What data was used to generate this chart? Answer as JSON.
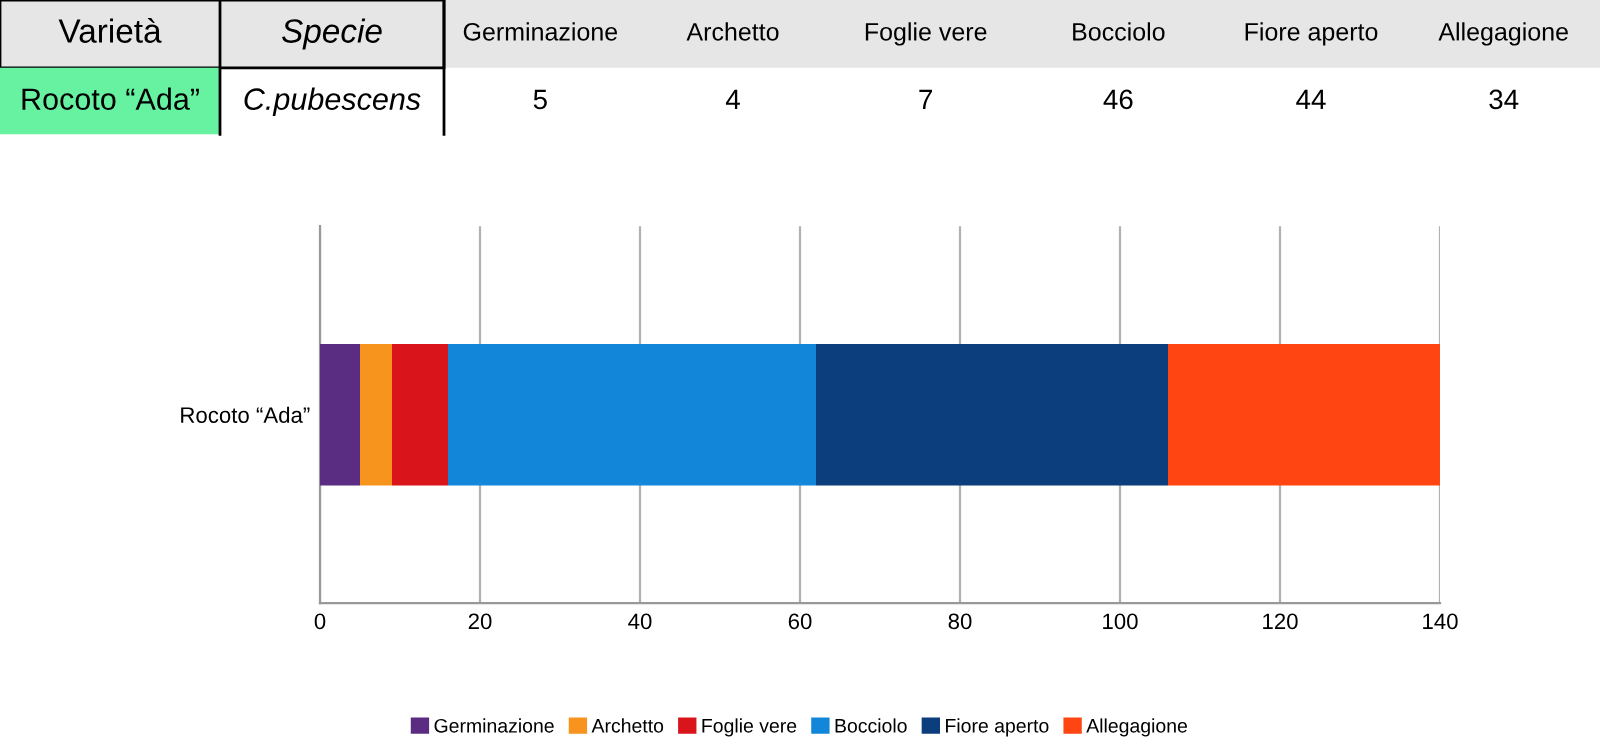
{
  "chart_data": {
    "type": "bar",
    "orientation": "horizontal",
    "stacked": true,
    "categories": [
      "Rocoto “Ada”"
    ],
    "series": [
      {
        "name": "Germinazione",
        "color": "#5b2d82",
        "values": [
          5
        ]
      },
      {
        "name": "Archetto",
        "color": "#f7941d",
        "values": [
          4
        ]
      },
      {
        "name": "Foglie vere",
        "color": "#d9151b",
        "values": [
          7
        ]
      },
      {
        "name": "Bocciolo",
        "color": "#1287d9",
        "values": [
          46
        ]
      },
      {
        "name": "Fiore aperto",
        "color": "#0c3d7c",
        "values": [
          44
        ]
      },
      {
        "name": "Allegagione",
        "color": "#ff4612",
        "values": [
          34
        ]
      }
    ],
    "xlim": [
      0,
      140
    ],
    "xticks": [
      0,
      20,
      40,
      60,
      80,
      100,
      120,
      140
    ],
    "grid": "x",
    "legend": "bottom",
    "annotations": [
      "Varietà",
      "Specie",
      "C.pubescens",
      "5",
      "4",
      "7",
      "46",
      "44",
      "34"
    ]
  }
}
